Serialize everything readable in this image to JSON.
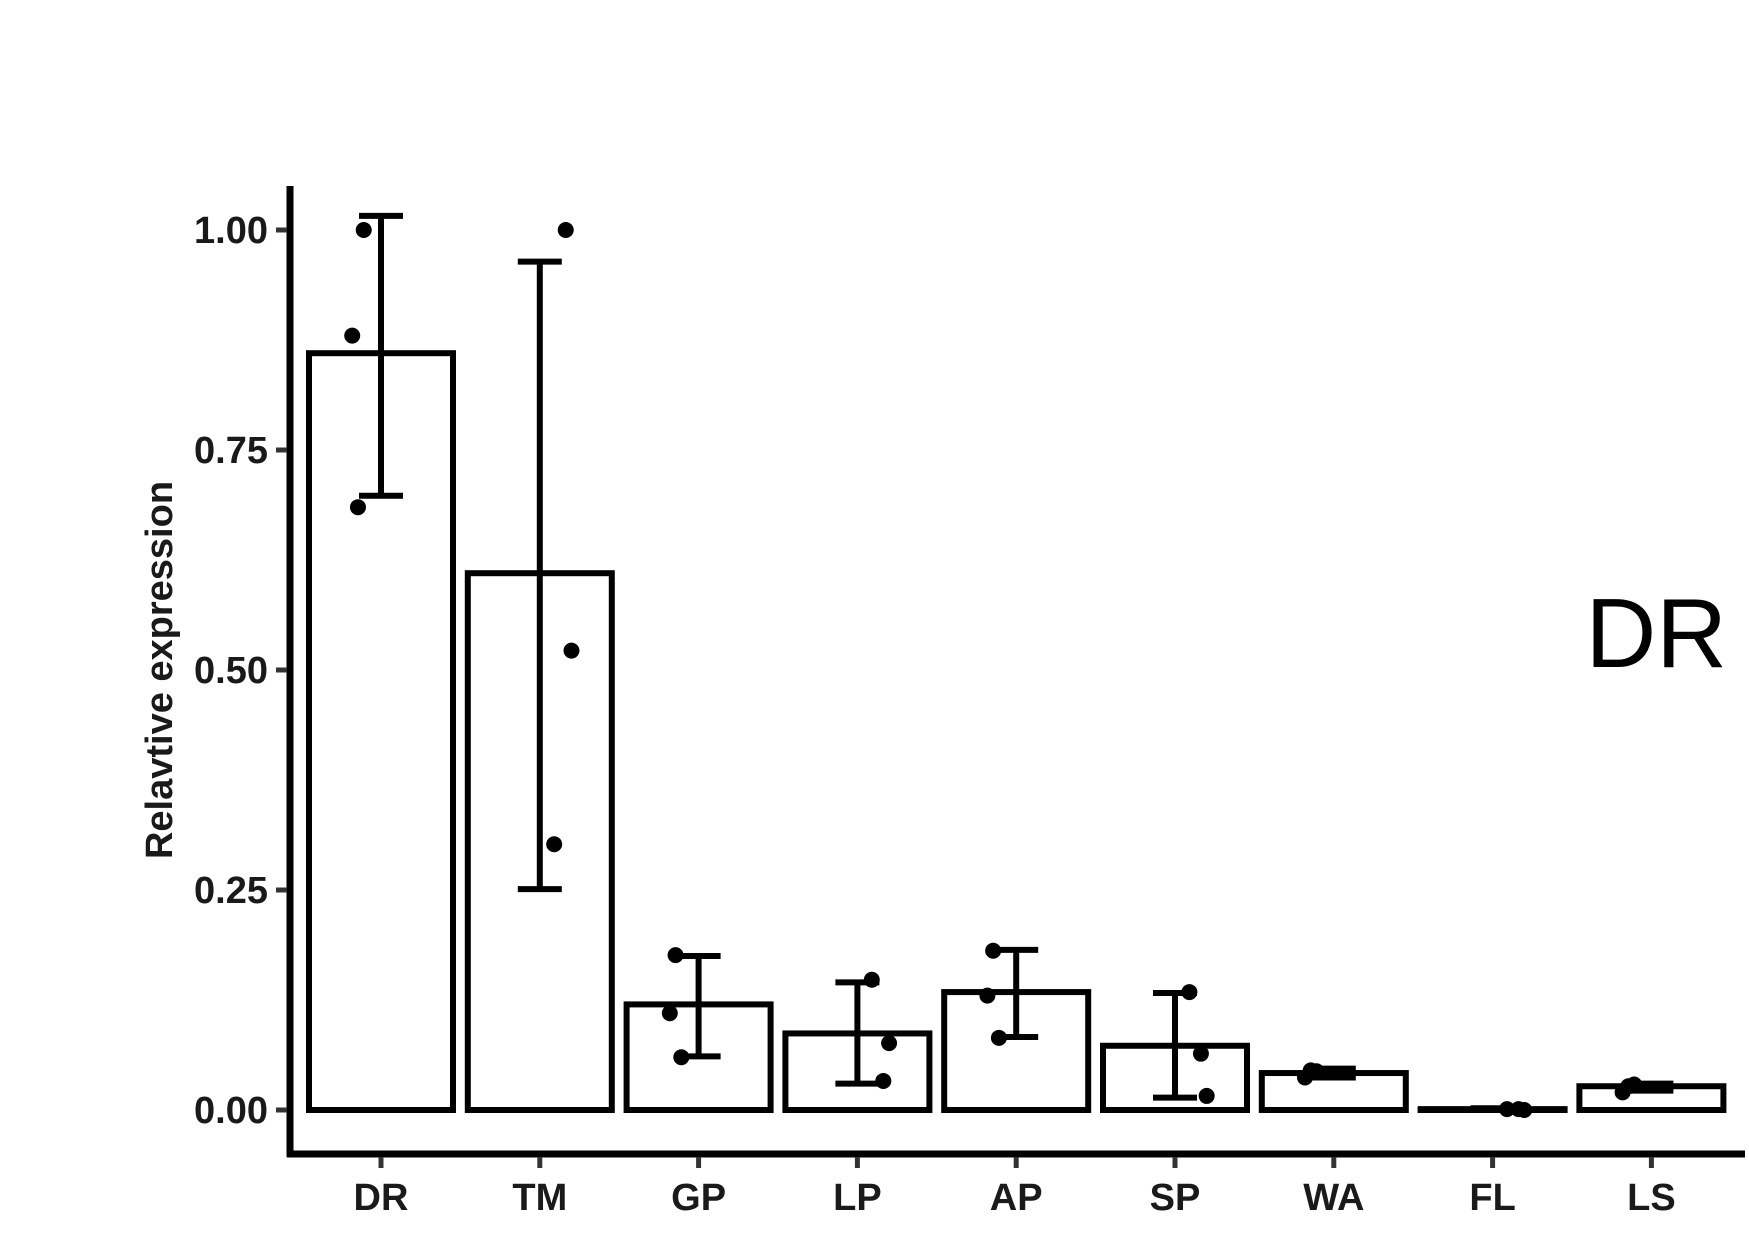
{
  "chart_data": {
    "type": "bar",
    "panel_label": "DR",
    "title": "",
    "xlabel": "",
    "ylabel": "Relavtive expression",
    "ylim": [
      -0.05,
      1.05
    ],
    "yticks": [
      0.0,
      0.25,
      0.5,
      0.75,
      1.0
    ],
    "ytick_labels": [
      "0.00",
      "0.25",
      "0.50",
      "0.75",
      "1.00"
    ],
    "grid": false,
    "legend": "none",
    "categories": [
      "DR",
      "TM",
      "GP",
      "LP",
      "AP",
      "SP",
      "WA",
      "FL",
      "LS"
    ],
    "values": [
      0.86,
      0.61,
      0.12,
      0.087,
      0.134,
      0.073,
      0.042,
      0.001,
      0.027
    ],
    "error_low": [
      0.698,
      0.251,
      0.061,
      0.03,
      0.083,
      0.014,
      0.037,
      0.0,
      0.022
    ],
    "error_high": [
      1.016,
      0.964,
      0.175,
      0.145,
      0.182,
      0.133,
      0.047,
      0.002,
      0.03
    ],
    "points": [
      [
        0.88,
        1.0,
        0.685
      ],
      [
        1.0,
        0.522,
        0.302
      ],
      [
        0.06,
        0.176,
        0.11
      ],
      [
        0.076,
        0.148,
        0.033
      ],
      [
        0.181,
        0.13,
        0.082
      ],
      [
        0.134,
        0.064,
        0.016
      ],
      [
        0.037,
        0.044,
        0.045
      ],
      [
        0.001,
        0.0,
        0.001
      ],
      [
        0.029,
        0.027,
        0.02
      ]
    ],
    "colors": {
      "bar_fill": "#ffffff",
      "stroke": "#000000",
      "tick_label": "#1a1a1a"
    }
  }
}
